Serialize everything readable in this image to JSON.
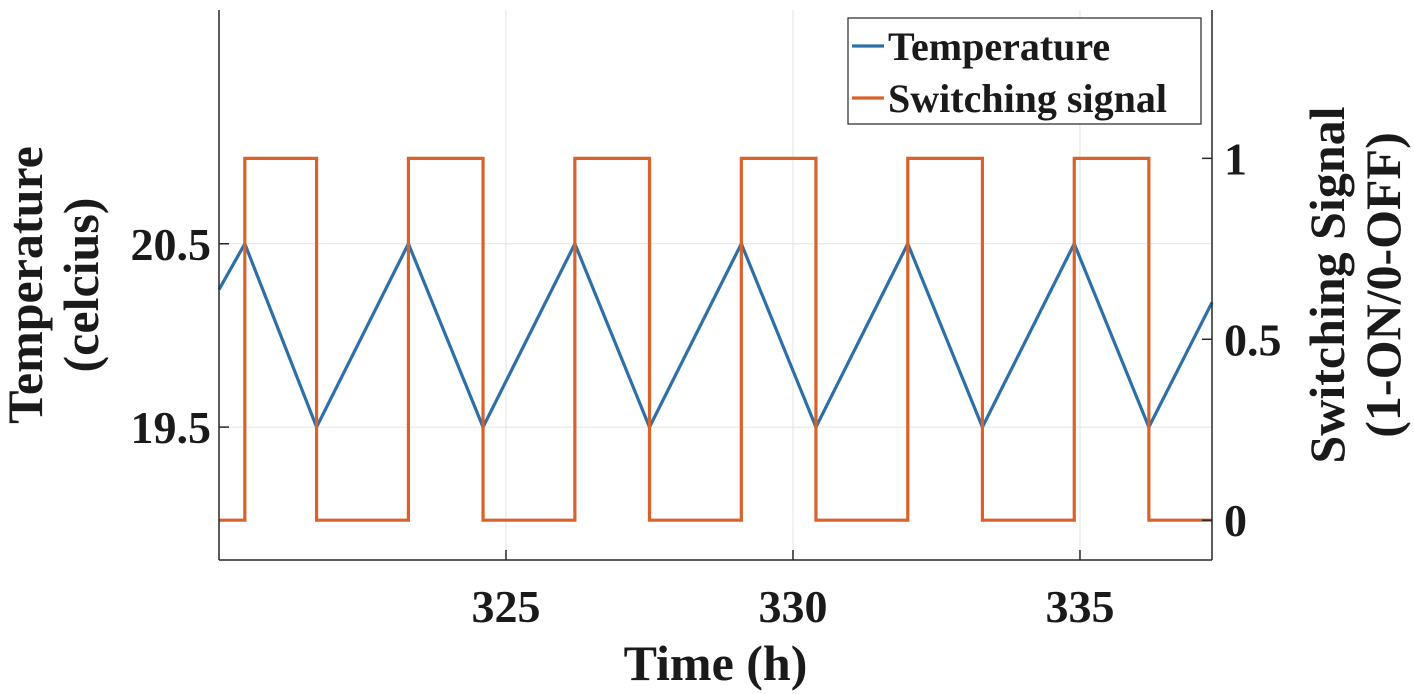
{
  "chart_data": {
    "type": "line",
    "xlabel": "Time (h)",
    "ylabel": [
      "Temperature",
      "(celcius)"
    ],
    "ylabel_right": [
      "Switching Signal",
      "(1-ON/0-OFF)"
    ],
    "xlim": [
      320.0,
      337.3
    ],
    "ylim": [
      18.775,
      21.775
    ],
    "ylim_right": [
      -0.11,
      1.41
    ],
    "xticks": [
      325,
      330,
      335
    ],
    "xtick_labels": [
      "325",
      "330",
      "335"
    ],
    "yticks": [
      19.5,
      20.5
    ],
    "ytick_labels": [
      "19.5",
      "20.5"
    ],
    "yticks_right": [
      0,
      0.5,
      1
    ],
    "ytick_labels_right": [
      "0",
      "0.5",
      "1"
    ],
    "grid": true,
    "legend": {
      "position": "top-right",
      "entries": [
        "Temperature",
        "Switching signal"
      ]
    },
    "series": [
      {
        "name": "Temperature",
        "axis": "left",
        "color": "#2E6FA8",
        "x": [
          320.0,
          320.45,
          321.7,
          323.3,
          324.6,
          326.2,
          327.5,
          329.1,
          330.4,
          332.0,
          333.3,
          334.9,
          336.2,
          337.3
        ],
        "y": [
          20.25,
          20.5,
          19.5,
          20.5,
          19.5,
          20.5,
          19.5,
          20.5,
          19.5,
          20.5,
          19.5,
          20.5,
          19.5,
          20.18
        ]
      },
      {
        "name": "Switching signal",
        "axis": "right",
        "color": "#D9622B",
        "step": true,
        "x": [
          320.0,
          320.45,
          321.7,
          323.3,
          324.6,
          326.2,
          327.5,
          329.1,
          330.4,
          332.0,
          333.3,
          334.9,
          336.2,
          337.3
        ],
        "y": [
          0,
          1,
          0,
          1,
          0,
          1,
          0,
          1,
          0,
          1,
          0,
          1,
          0,
          0
        ]
      }
    ]
  }
}
